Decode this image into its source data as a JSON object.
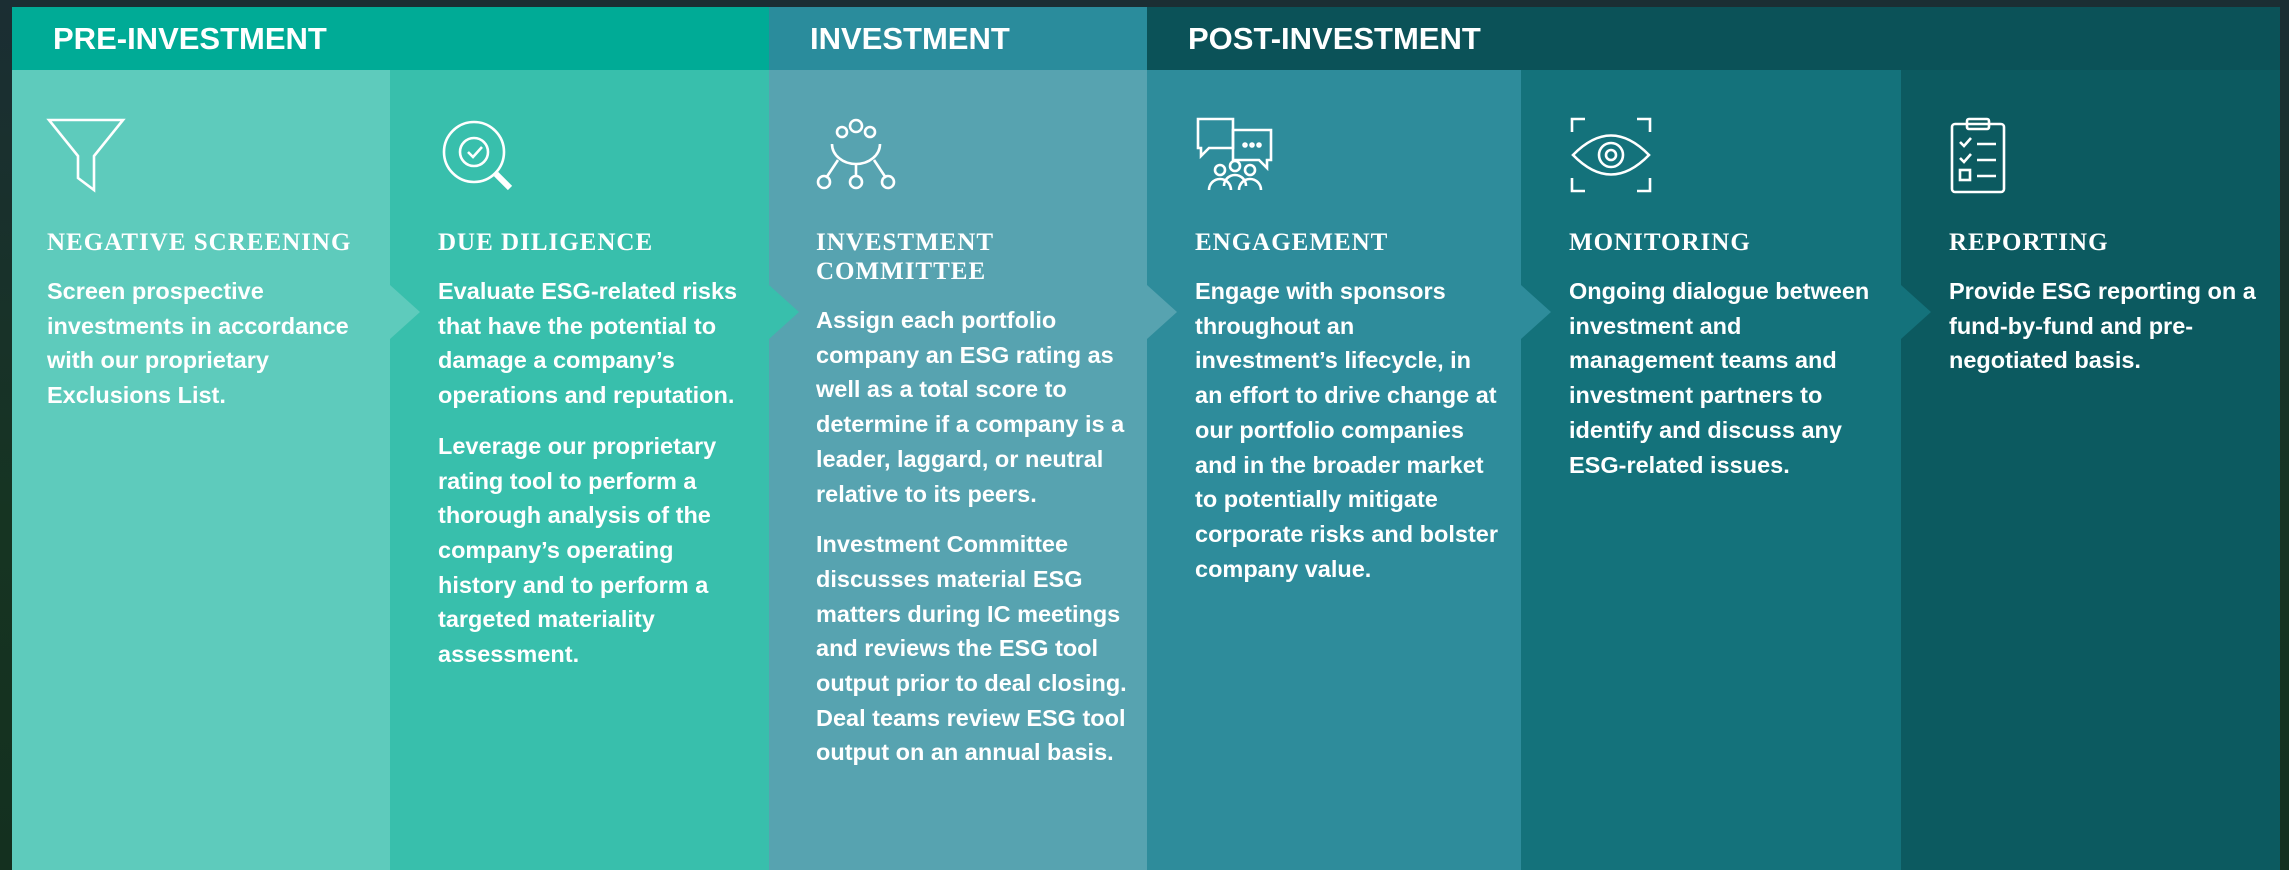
{
  "stages": [
    {
      "title": "PRE-INVESTMENT"
    },
    {
      "title": "INVESTMENT"
    },
    {
      "title": "POST-INVESTMENT"
    }
  ],
  "columns": [
    {
      "title": "NEGATIVE SCREENING",
      "paragraphs": [
        "Screen prospective investments in accordance with our proprietary Exclusions List."
      ]
    },
    {
      "title": "DUE DILIGENCE",
      "paragraphs": [
        "Evaluate ESG-related risks that have the potential to damage a company’s operations and reputation.",
        "Leverage our proprietary rating tool to perform a thorough analysis of the company’s operating history and to perform a targeted materiality assessment."
      ]
    },
    {
      "title": "INVESTMENT COMMITTEE",
      "paragraphs": [
        "Assign each portfolio company an ESG rating as well as a total score to determine if a company is a leader, laggard, or neutral relative to its peers.",
        "Investment Committee discusses material ESG matters during IC meetings and reviews the ESG tool output prior to deal closing. Deal teams review ESG tool output on an annual basis."
      ]
    },
    {
      "title": "ENGAGEMENT",
      "paragraphs": [
        "Engage with sponsors throughout an investment’s lifecycle, in an effort to drive change at our portfolio companies and in the broader market to potentially mitigate corporate risks and bolster company value."
      ]
    },
    {
      "title": "MONITORING",
      "paragraphs": [
        "Ongoing dialogue between investment and management teams and investment partners to identify and discuss any ESG-related issues."
      ]
    },
    {
      "title": "REPORTING",
      "paragraphs": [
        "Provide ESG reporting on a fund-by-fund and pre-negotiated basis."
      ]
    }
  ]
}
